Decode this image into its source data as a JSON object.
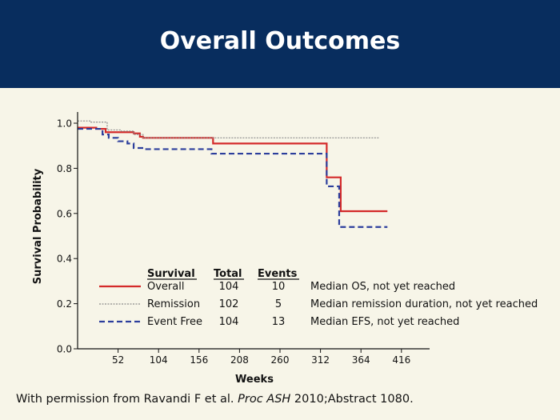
{
  "header": {
    "title": "Overall Outcomes"
  },
  "footer": {
    "pre": "With permission from Ravandi F et al. ",
    "italic": "Proc ASH",
    "post": " 2010;Abstract 1080."
  },
  "colors": {
    "header_bg": "#082d5e",
    "background": "#f7f5e8",
    "overall": "#d42a2a",
    "remission": "#8c8c8c",
    "event_free": "#2c3e9c"
  },
  "chart_data": {
    "type": "line",
    "title": "",
    "xlabel": "Weeks",
    "ylabel": "Survival Probability",
    "xlim": [
      0,
      432
    ],
    "ylim": [
      0,
      1.05
    ],
    "xticks": [
      52,
      104,
      156,
      208,
      260,
      312,
      364,
      416
    ],
    "yticks": [
      0.0,
      0.2,
      0.4,
      0.6,
      0.8,
      1.0
    ],
    "ytick_labels": [
      "0.0",
      "0.2",
      "0.4",
      "0.6",
      "0.8",
      "1.0"
    ],
    "table_headers": [
      "Survival",
      "Total",
      "Events"
    ],
    "series": [
      {
        "name": "Overall",
        "total": "104",
        "events": "10",
        "note": "Median OS, not yet reached",
        "color": "#d42a2a",
        "dash": "solid",
        "x": [
          0,
          8,
          24,
          36,
          52,
          72,
          80,
          84,
          172,
          174,
          320,
          320,
          338,
          338,
          398
        ],
        "y": [
          0.98,
          0.98,
          0.975,
          0.96,
          0.96,
          0.955,
          0.94,
          0.935,
          0.935,
          0.91,
          0.89,
          0.76,
          0.76,
          0.61,
          0.61
        ]
      },
      {
        "name": "Remission",
        "total": "102",
        "events": "5",
        "note": "Median remission duration, not yet reached",
        "color": "#8c8c8c",
        "dash": "dotted",
        "x": [
          0,
          16,
          38,
          56,
          72,
          84,
          388
        ],
        "y": [
          1.01,
          1.005,
          0.97,
          0.965,
          0.95,
          0.935,
          0.935
        ]
      },
      {
        "name": "Event Free",
        "total": "104",
        "events": "13",
        "note": "Median EFS, not yet reached",
        "color": "#2c3e9c",
        "dash": "dashed",
        "x": [
          0,
          24,
          32,
          40,
          52,
          64,
          72,
          86,
          172,
          320,
          320,
          336,
          336,
          398
        ],
        "y": [
          0.975,
          0.975,
          0.95,
          0.935,
          0.92,
          0.91,
          0.89,
          0.885,
          0.865,
          0.865,
          0.72,
          0.72,
          0.54,
          0.54
        ]
      }
    ]
  }
}
